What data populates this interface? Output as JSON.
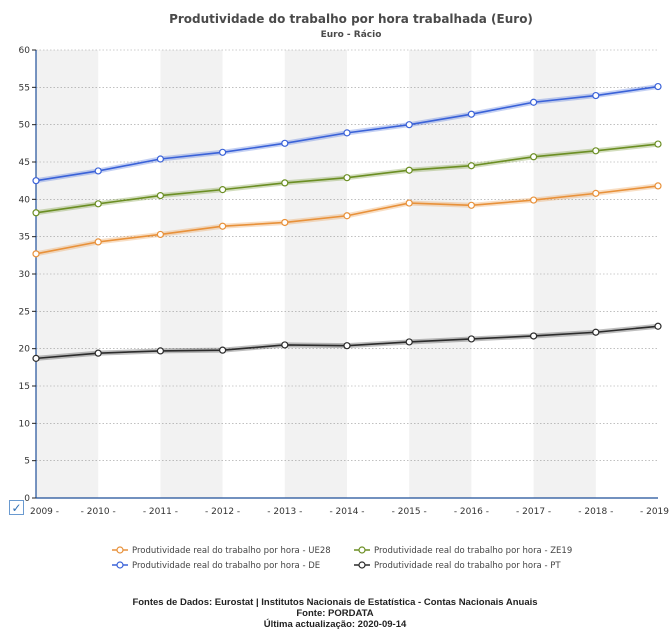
{
  "chart_data": {
    "type": "line",
    "title": "Produtividade do trabalho por hora trabalhada (Euro)",
    "subtitle": "Euro - Rácio",
    "x": [
      "2009",
      "2010",
      "2011",
      "2012",
      "2013",
      "2014",
      "2015",
      "2016",
      "2017",
      "2018",
      "2019"
    ],
    "x_tick_labels": [
      "2009 -",
      "- 2010 -",
      "- 2011 -",
      "- 2012 -",
      "- 2013 -",
      "- 2014 -",
      "- 2015 -",
      "- 2016 -",
      "- 2017 -",
      "- 2018 -",
      "- 2019"
    ],
    "ylim": [
      0,
      60
    ],
    "yticks": [
      0,
      5,
      10,
      15,
      20,
      25,
      30,
      35,
      40,
      45,
      50,
      55,
      60
    ],
    "grid": true,
    "legend_position": "bottom",
    "series": [
      {
        "name": "Produtividade real do trabalho por hora - UE28",
        "color": "#e8913a",
        "values": [
          32.7,
          34.3,
          35.3,
          36.4,
          36.9,
          37.8,
          39.5,
          39.2,
          39.9,
          40.8,
          41.8
        ]
      },
      {
        "name": "Produtividade real do trabalho por hora - ZE19",
        "color": "#6b8e23",
        "values": [
          38.2,
          39.4,
          40.5,
          41.3,
          42.2,
          42.9,
          43.9,
          44.5,
          45.7,
          46.5,
          47.4
        ]
      },
      {
        "name": "Produtividade real do trabalho por hora - DE",
        "color": "#3a62d8",
        "values": [
          42.5,
          43.8,
          45.4,
          46.3,
          47.5,
          48.9,
          50.0,
          51.4,
          53.0,
          53.9,
          55.1
        ]
      },
      {
        "name": "Produtividade real do trabalho por hora - PT",
        "color": "#2b2b2b",
        "values": [
          18.7,
          19.4,
          19.7,
          19.8,
          20.5,
          20.4,
          20.9,
          21.3,
          21.7,
          22.2,
          23.0
        ]
      }
    ]
  },
  "footer": {
    "line1": "Fontes de Dados: Eurostat | Institutos Nacionais de Estatística - Contas Nacionais Anuais",
    "line2": "Fonte: PORDATA",
    "line3": "Última actualização: 2020-09-14"
  },
  "checkbox_glyph": "✓"
}
